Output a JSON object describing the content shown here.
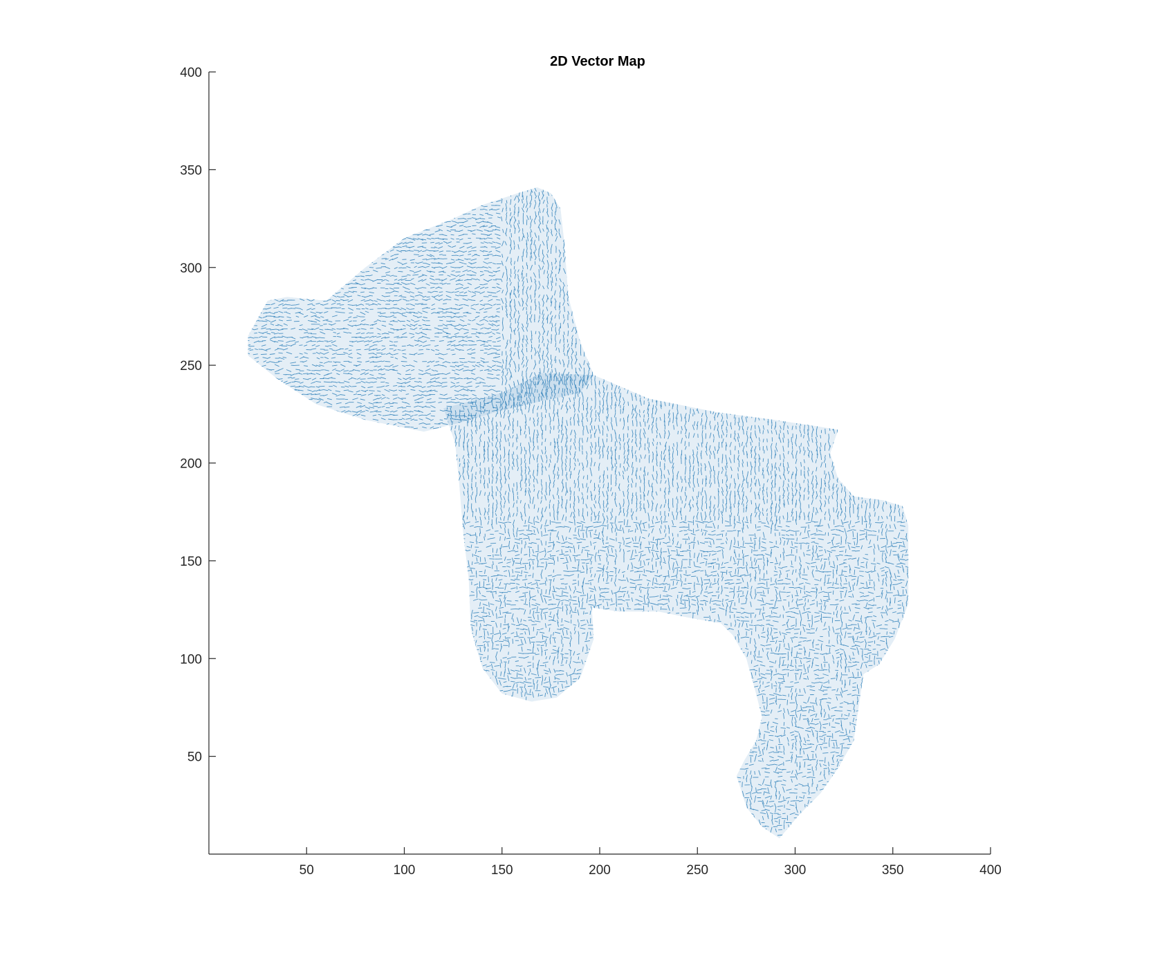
{
  "chart_data": {
    "type": "scatter",
    "title": "2D Vector Map",
    "xlabel": "",
    "ylabel": "",
    "xlim": [
      0,
      400
    ],
    "ylim": [
      0,
      400
    ],
    "xticks": [
      "50",
      "100",
      "150",
      "200",
      "250",
      "300",
      "350",
      "400"
    ],
    "yticks": [
      "50",
      "100",
      "150",
      "200",
      "250",
      "300",
      "350",
      "400"
    ],
    "grid": false,
    "box": false,
    "legend": "none",
    "marker_color": "#1f77b4",
    "series": [
      {
        "region": "head-and-ear",
        "outline": [
          [
            20,
            265
          ],
          [
            30,
            283
          ],
          [
            40,
            285
          ],
          [
            60,
            283
          ],
          [
            80,
            300
          ],
          [
            100,
            315
          ],
          [
            125,
            325
          ],
          [
            140,
            332
          ],
          [
            158,
            338
          ],
          [
            168,
            341
          ],
          [
            175,
            338
          ],
          [
            180,
            330
          ],
          [
            182,
            312
          ],
          [
            184,
            285
          ],
          [
            190,
            262
          ],
          [
            197,
            245
          ],
          [
            190,
            236
          ],
          [
            172,
            232
          ],
          [
            150,
            227
          ],
          [
            130,
            221
          ],
          [
            110,
            216
          ],
          [
            80,
            222
          ],
          [
            55,
            230
          ],
          [
            35,
            243
          ],
          [
            20,
            255
          ]
        ]
      },
      {
        "region": "body",
        "outline": [
          [
            120,
            228
          ],
          [
            150,
            236
          ],
          [
            170,
            246
          ],
          [
            197,
            245
          ],
          [
            225,
            233
          ],
          [
            260,
            226
          ],
          [
            290,
            222
          ],
          [
            310,
            219
          ],
          [
            322,
            217
          ],
          [
            318,
            205
          ],
          [
            322,
            192
          ],
          [
            330,
            183
          ],
          [
            345,
            181
          ],
          [
            355,
            178
          ],
          [
            358,
            168
          ],
          [
            358,
            150
          ],
          [
            358,
            128
          ],
          [
            351,
            110
          ],
          [
            343,
            97
          ],
          [
            335,
            92
          ],
          [
            333,
            78
          ],
          [
            330,
            58
          ],
          [
            322,
            44
          ],
          [
            313,
            31
          ],
          [
            302,
            20
          ],
          [
            292,
            8
          ],
          [
            283,
            14
          ],
          [
            275,
            24
          ],
          [
            270,
            40
          ],
          [
            274,
            48
          ],
          [
            280,
            58
          ],
          [
            283,
            70
          ],
          [
            280,
            82
          ],
          [
            275,
            100
          ],
          [
            268,
            112
          ],
          [
            262,
            118
          ],
          [
            245,
            121
          ],
          [
            230,
            124
          ],
          [
            210,
            124
          ],
          [
            196,
            126
          ],
          [
            197,
            110
          ],
          [
            190,
            90
          ],
          [
            178,
            80
          ],
          [
            165,
            78
          ],
          [
            150,
            82
          ],
          [
            140,
            95
          ],
          [
            134,
            115
          ],
          [
            133,
            140
          ],
          [
            130,
            165
          ],
          [
            128,
            190
          ],
          [
            126,
            210
          ]
        ]
      }
    ]
  }
}
